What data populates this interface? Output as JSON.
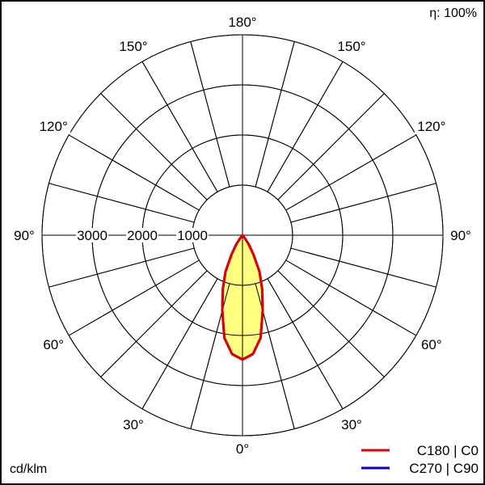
{
  "chart_data": {
    "type": "polar",
    "unit_label": "cd/klm",
    "efficiency_label": "η: 100%",
    "radial_max": 4000,
    "radial_rings": [
      1000,
      2000,
      3000,
      4000
    ],
    "radial_tick_labels": [
      "1000",
      "2000",
      "3000"
    ],
    "angle_step_deg": 15,
    "angle_labels": [
      {
        "angle": 180,
        "text": "180°"
      },
      {
        "angle": 150,
        "text": "150°"
      },
      {
        "angle": 120,
        "text": "120°"
      },
      {
        "angle": 90,
        "text": "90°"
      },
      {
        "angle": 60,
        "text": "60°"
      },
      {
        "angle": 30,
        "text": "30°"
      },
      {
        "angle": 0,
        "text": "0°"
      }
    ],
    "grid": true,
    "legend_position": "bottom-right",
    "series": [
      {
        "name": "C180 | C0",
        "color": "#e00000",
        "fill": "#ffff80",
        "angles": [
          0,
          5,
          10,
          15,
          20,
          25,
          30,
          35,
          40,
          45
        ],
        "values": [
          2480,
          2380,
          2080,
          1560,
          1150,
          800,
          430,
          200,
          50,
          0
        ]
      },
      {
        "name": "C270 | C90",
        "color": "#0000c8",
        "angles": [
          0,
          5,
          10,
          15,
          20,
          25,
          30,
          35,
          40,
          45
        ],
        "values": [
          2480,
          2380,
          2080,
          1560,
          1150,
          800,
          430,
          200,
          50,
          0
        ]
      }
    ]
  }
}
